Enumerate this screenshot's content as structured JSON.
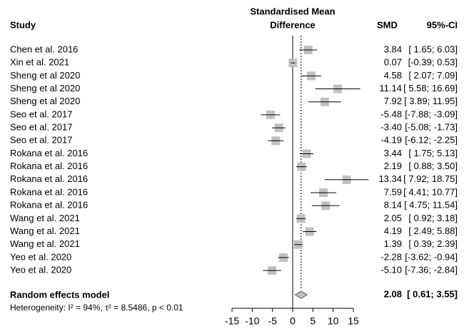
{
  "chart_data": {
    "type": "forest",
    "header": {
      "study": "Study",
      "effect_line1": "Standardised Mean",
      "effect_line2": "Difference",
      "smd": "SMD",
      "ci": "95%-CI"
    },
    "studies": [
      "Chen et al. 2016",
      "Xin et al. 2021",
      "Sheng et al 2020",
      "Sheng et al 2020",
      "Sheng et al 2020",
      "Seo et al. 2017",
      "Seo et al. 2017",
      "Seo et al. 2017",
      "Rokana et al. 2016",
      "Rokana et al. 2016",
      "Rokana et al. 2016",
      "Rokana et al. 2016",
      "Rokana et al. 2016",
      "Wang et al. 2021",
      "Wang et al. 2021",
      "Wang et al. 2021",
      "Yeo et al. 2020",
      "Yeo et al. 2020"
    ],
    "values": [
      3.84,
      0.07,
      4.58,
      11.14,
      7.92,
      -5.48,
      -3.4,
      -4.19,
      3.44,
      2.19,
      13.34,
      7.59,
      8.14,
      2.05,
      4.19,
      1.39,
      -2.28,
      -5.1
    ],
    "value_labels": [
      "3.84",
      "0.07",
      "4.58",
      "11.14",
      "7.92",
      "-5.48",
      "-3.40",
      "-4.19",
      "3.44",
      "2.19",
      "13.34",
      "7.59",
      "8.14",
      "2.05",
      "4.19",
      "1.39",
      "-2.28",
      "-5.10"
    ],
    "lower": [
      1.65,
      -0.39,
      2.07,
      5.58,
      3.89,
      -7.88,
      -5.08,
      -6.12,
      1.75,
      0.88,
      7.92,
      4.41,
      4.75,
      0.92,
      2.49,
      0.39,
      -3.62,
      -7.36
    ],
    "upper": [
      6.03,
      0.53,
      7.09,
      16.69,
      11.95,
      -3.09,
      -1.73,
      -2.25,
      5.13,
      3.5,
      18.75,
      10.77,
      11.54,
      3.18,
      5.88,
      2.39,
      -0.94,
      -2.84
    ],
    "ci_labels": [
      "[ 1.65; 6.03]",
      "[-0.39; 0.53]",
      "[ 2.07; 7.09]",
      "[ 5.58; 16.69]",
      "[ 3.89; 11.95]",
      "[-7.88; -3.09]",
      "[-5.08; -1.73]",
      "[-6.12; -2.25]",
      "[ 1.75; 5.13]",
      "[ 0.88; 3.50]",
      "[ 7.92; 18.75]",
      "[ 4.41; 10.77]",
      "[ 4.75; 11.54]",
      "[ 0.92; 3.18]",
      "[ 2.49; 5.88]",
      "[ 0.39; 2.39]",
      "[-3.62; -0.94]",
      "[-7.36; -2.84]"
    ],
    "model": {
      "label": "Random effects model",
      "value": 2.08,
      "lower": 0.61,
      "upper": 3.55,
      "ci_label": "[ 0.61; 3.55]"
    },
    "heterogeneity": "Heterogeneity: I² = 94%, τ² = 8.5486, p < 0.01",
    "color": "#c0c0c0",
    "xlim": [
      -15,
      15
    ],
    "xticks": [
      -15,
      -10,
      -5,
      0,
      5,
      10,
      15
    ]
  }
}
